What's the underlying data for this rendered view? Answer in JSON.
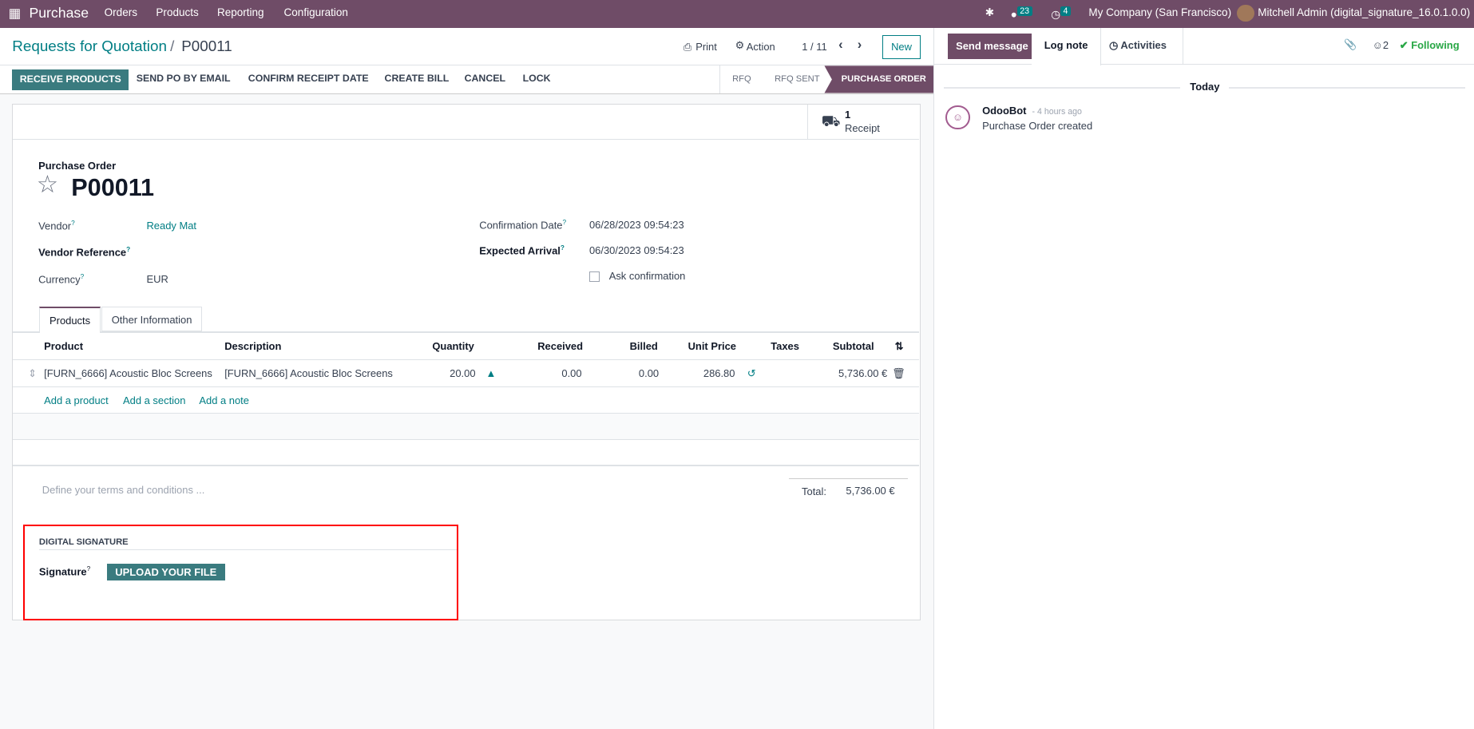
{
  "navbar": {
    "app_name": "Purchase",
    "menu": [
      "Orders",
      "Products",
      "Reporting",
      "Configuration"
    ],
    "messages_count": "23",
    "activities_count": "4",
    "company": "My Company (San Francisco)",
    "user": "Mitchell Admin (digital_signature_16.0.1.0.0)"
  },
  "control_panel": {
    "breadcrumb_parent": "Requests for Quotation",
    "breadcrumb_sep": "/",
    "breadcrumb_current": "P00011",
    "print": "Print",
    "action": "Action",
    "pager": "1 / 11",
    "new": "New"
  },
  "status_bar": {
    "buttons": [
      "RECEIVE PRODUCTS",
      "SEND PO BY EMAIL",
      "CONFIRM RECEIPT DATE",
      "CREATE BILL",
      "CANCEL",
      "LOCK"
    ],
    "stages": [
      "RFQ",
      "RFQ SENT",
      "PURCHASE ORDER"
    ],
    "active_stage": "PURCHASE ORDER"
  },
  "stat_button": {
    "count": "1",
    "label": "Receipt"
  },
  "form": {
    "subtitle": "Purchase Order",
    "name": "P00011",
    "vendor_label": "Vendor",
    "vendor": "Ready Mat",
    "vendor_ref_label": "Vendor Reference",
    "currency_label": "Currency",
    "currency": "EUR",
    "confirmation_label": "Confirmation Date",
    "confirmation": "06/28/2023 09:54:23",
    "arrival_label": "Expected Arrival",
    "arrival": "06/30/2023 09:54:23",
    "ask_confirmation": "Ask confirmation",
    "ask_confirmation_checked": false,
    "help_mark": "?"
  },
  "tabs": [
    "Products",
    "Other Information"
  ],
  "table": {
    "headers": [
      "Product",
      "Description",
      "Quantity",
      "Received",
      "Billed",
      "Unit Price",
      "Taxes",
      "Subtotal"
    ],
    "rows": [
      {
        "product": "[FURN_6666] Acoustic Bloc Screens",
        "description": "[FURN_6666] Acoustic Bloc Screens",
        "quantity": "20.00",
        "received": "0.00",
        "billed": "0.00",
        "unit_price": "286.80",
        "taxes": "",
        "subtotal": "5,736.00 €"
      }
    ],
    "add_links": [
      "Add a product",
      "Add a section",
      "Add a note"
    ]
  },
  "terms_placeholder": "Define your terms and conditions ...",
  "total": {
    "label": "Total:",
    "value": "5,736.00 €"
  },
  "digital_signature": {
    "title": "DIGITAL SIGNATURE",
    "label": "Signature",
    "button": "UPLOAD YOUR FILE"
  },
  "chatter": {
    "send_message": "Send message",
    "log_note": "Log note",
    "activities": "Activities",
    "followers_count": "2",
    "following": "Following",
    "date_sep": "Today",
    "messages": [
      {
        "author": "OdooBot",
        "time": "- 4 hours ago",
        "body": "Purchase Order created"
      }
    ]
  },
  "colors": {
    "brand": "#6f4c67",
    "primary": "#3a7b7f",
    "link": "#017e84",
    "highlight": "#ff0000"
  }
}
